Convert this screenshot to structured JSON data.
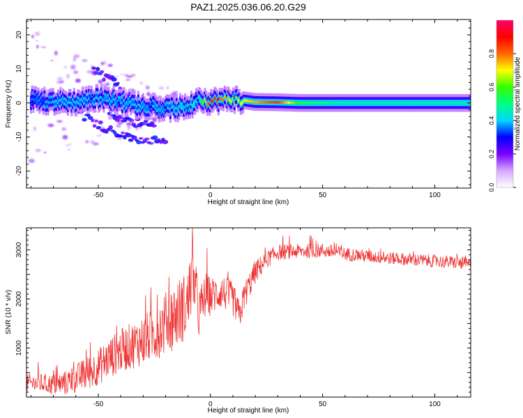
{
  "figure_title": "PAZ1.2025.036.06.20.G29",
  "chart_data": [
    {
      "type": "heatmap",
      "title": "",
      "xlabel": "Height of straight line (km)",
      "ylabel": "Frequency (Hz)",
      "xlim": [
        -82,
        116
      ],
      "ylim": [
        -25,
        24.5
      ],
      "xticks": [
        -50,
        0,
        50,
        100
      ],
      "yticks": [
        -20,
        -10,
        0,
        10,
        20
      ],
      "colorbar": {
        "label": "Normalized spectral amplitude",
        "range": [
          0,
          1
        ],
        "ticks": [
          "0.0",
          "0.2",
          "0.4",
          "0.6",
          "0.8"
        ],
        "colors": [
          "#ffffff",
          "#d6a8ff",
          "#7a00ff",
          "#0000ff",
          "#00d8ff",
          "#00ff80",
          "#33ff00",
          "#ffff00",
          "#ff6600",
          "#ff0000",
          "#ff0066"
        ]
      },
      "ridge": {
        "x": [
          -80,
          -70,
          -60,
          -50,
          -40,
          -30,
          -20,
          -10,
          -5,
          0,
          5,
          10,
          20,
          30,
          40,
          60,
          80,
          100,
          116
        ],
        "freq": [
          1.0,
          0.5,
          0.3,
          1.5,
          0.5,
          -1.0,
          -1.5,
          -1.5,
          1.0,
          0.5,
          0.8,
          1.2,
          0.3,
          0.2,
          0.0,
          0.0,
          0.0,
          0.0,
          0.0
        ],
        "amplitude": [
          0.3,
          0.35,
          0.35,
          0.35,
          0.35,
          0.35,
          0.35,
          0.4,
          0.45,
          0.9,
          0.8,
          0.65,
          0.75,
          0.85,
          0.55,
          0.45,
          0.45,
          0.45,
          0.45
        ]
      },
      "side_branches": [
        {
          "x": [
            -52,
            -45,
            -38,
            -30
          ],
          "freq": [
            9.5,
            7.0,
            3.0,
            -1.5
          ]
        },
        {
          "x": [
            -58,
            -48,
            -38,
            -28,
            -20
          ],
          "freq": [
            -3.0,
            -7.0,
            -10.0,
            -11.0,
            -12.0
          ]
        },
        {
          "x": [
            -45,
            -35,
            -25
          ],
          "freq": [
            -3.0,
            -5.5,
            -7.0
          ]
        }
      ]
    },
    {
      "type": "line",
      "title": "",
      "xlabel": "Height of straight line (km)",
      "ylabel": "SNR (10 * v/v)",
      "xlim": [
        -82,
        116
      ],
      "ylim": [
        0,
        3450
      ],
      "xticks": [
        -50,
        0,
        50,
        100
      ],
      "yticks": [
        1000,
        2000,
        3000
      ],
      "series": [
        {
          "color": "#ee3333",
          "x": [
            -82,
            -75,
            -70,
            -65,
            -60,
            -55,
            -50,
            -45,
            -40,
            -35,
            -30,
            -25,
            -20,
            -15,
            -10,
            -8,
            -5,
            -2,
            0,
            5,
            10,
            13,
            15,
            20,
            25,
            30,
            40,
            50,
            60,
            70,
            80,
            90,
            100,
            110,
            116
          ],
          "y": [
            280,
            280,
            250,
            280,
            380,
            480,
            620,
            800,
            950,
            1050,
            1150,
            1300,
            1500,
            1700,
            1900,
            2500,
            1700,
            2100,
            2050,
            2150,
            2000,
            1650,
            2050,
            2550,
            2800,
            2950,
            2970,
            2990,
            2920,
            2870,
            2830,
            2800,
            2770,
            2740,
            2700
          ],
          "noise_amplitude": [
            200,
            200,
            220,
            250,
            300,
            350,
            380,
            420,
            450,
            480,
            520,
            560,
            650,
            700,
            700,
            700,
            550,
            450,
            400,
            350,
            350,
            300,
            300,
            250,
            180,
            160,
            150,
            150,
            140,
            130,
            130,
            130,
            130,
            130,
            130
          ]
        }
      ]
    }
  ]
}
